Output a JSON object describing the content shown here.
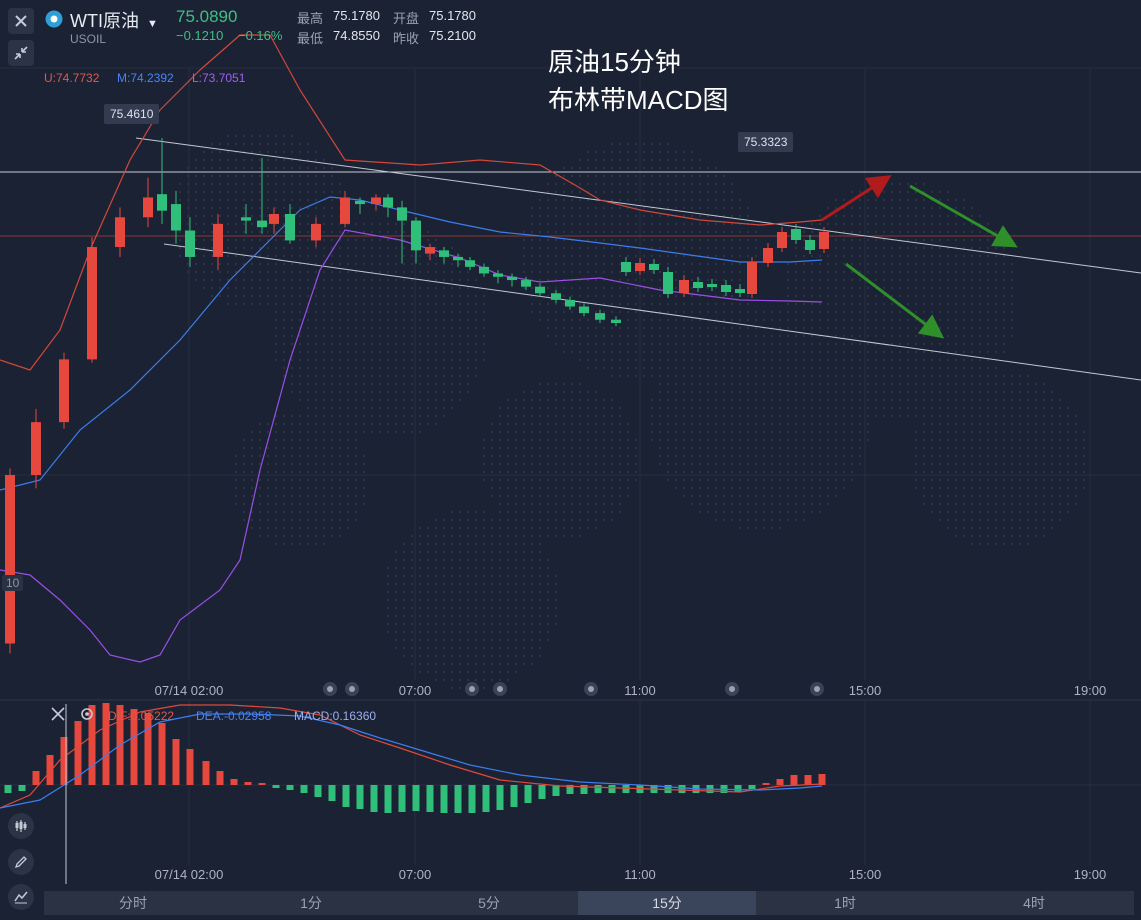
{
  "header": {
    "symbol_name": "WTI原油",
    "symbol_code": "USOIL",
    "price": "75.0890",
    "change": "−0.1210",
    "change_pct": "−0.16%",
    "stats": {
      "high_label": "最高",
      "high_value": "75.1780",
      "open_label": "开盘",
      "open_value": "75.1780",
      "low_label": "最低",
      "low_value": "74.8550",
      "prev_close_label": "昨收",
      "prev_close_value": "75.2100"
    }
  },
  "annotation": {
    "line1": "原油15分钟",
    "line2": "布林带MACD图"
  },
  "price_tags": {
    "high_tag": "75.4610",
    "right_tag": "75.3323"
  },
  "left_axis_label": "10",
  "bollinger_legend": {
    "upper": "U:74.7732",
    "middle": "M:74.2392",
    "lower": "L:73.7051"
  },
  "macd_legend": {
    "dif": "DIF:0.05222",
    "dea": "DEA:-0.02958",
    "macd": "MACD:0.16360"
  },
  "time_axis": [
    "07/14 02:00",
    "07:00",
    "11:00",
    "15:00",
    "19:00"
  ],
  "timeframes": [
    "分时",
    "1分",
    "5分",
    "15分",
    "1时",
    "4时"
  ],
  "active_timeframe": "15分",
  "colors": {
    "up": "#e6483d",
    "down": "#2fbf7a",
    "upper_band": "#d2483b",
    "middle_band": "#3d7df0",
    "lower_band": "#9a4fe6",
    "dif": "#e0493c",
    "dea": "#3d7df0",
    "accent_green": "#3fbf83"
  },
  "chart_data": [
    {
      "type": "candlestick",
      "title": "WTI原油 15分",
      "x": [
        "07/14 02:00",
        "07:00",
        "11:00",
        "15:00",
        "19:00"
      ],
      "ylim": [
        73.4,
        75.6
      ],
      "series": [
        {
          "name": "U:74.7732",
          "type": "line"
        },
        {
          "name": "M:74.2392",
          "type": "line"
        },
        {
          "name": "L:73.7051",
          "type": "line"
        }
      ],
      "candles": [
        {
          "o": 73.93,
          "c": 74.44,
          "h": 74.46,
          "l": 73.9
        },
        {
          "o": 74.44,
          "c": 74.6,
          "h": 74.64,
          "l": 74.4
        },
        {
          "o": 74.6,
          "c": 74.79,
          "h": 74.81,
          "l": 74.58
        },
        {
          "o": 74.79,
          "c": 75.13,
          "h": 75.16,
          "l": 74.78
        },
        {
          "o": 75.13,
          "c": 75.22,
          "h": 75.25,
          "l": 75.1
        },
        {
          "o": 75.22,
          "c": 75.28,
          "h": 75.34,
          "l": 75.19
        },
        {
          "o": 75.29,
          "c": 75.24,
          "h": 75.46,
          "l": 75.2
        },
        {
          "o": 75.26,
          "c": 75.18,
          "h": 75.3,
          "l": 75.14
        },
        {
          "o": 75.18,
          "c": 75.1,
          "h": 75.22,
          "l": 75.07
        },
        {
          "o": 75.1,
          "c": 75.2,
          "h": 75.23,
          "l": 75.06
        },
        {
          "o": 75.22,
          "c": 75.21,
          "h": 75.26,
          "l": 75.17
        },
        {
          "o": 75.21,
          "c": 75.19,
          "h": 75.4,
          "l": 75.17
        },
        {
          "o": 75.2,
          "c": 75.23,
          "h": 75.25,
          "l": 75.17
        },
        {
          "o": 75.23,
          "c": 75.15,
          "h": 75.26,
          "l": 75.14
        },
        {
          "o": 75.15,
          "c": 75.2,
          "h": 75.22,
          "l": 75.13
        },
        {
          "o": 75.2,
          "c": 75.28,
          "h": 75.3,
          "l": 75.19
        },
        {
          "o": 75.27,
          "c": 75.26,
          "h": 75.28,
          "l": 75.23
        },
        {
          "o": 75.26,
          "c": 75.28,
          "h": 75.29,
          "l": 75.24
        },
        {
          "o": 75.28,
          "c": 75.25,
          "h": 75.29,
          "l": 75.22
        },
        {
          "o": 75.25,
          "c": 75.21,
          "h": 75.27,
          "l": 75.08
        },
        {
          "o": 75.21,
          "c": 75.12,
          "h": 75.22,
          "l": 75.08
        },
        {
          "o": 75.11,
          "c": 75.13,
          "h": 75.14,
          "l": 75.09
        },
        {
          "o": 75.12,
          "c": 75.1,
          "h": 75.13,
          "l": 75.08
        },
        {
          "o": 75.1,
          "c": 75.09,
          "h": 75.11,
          "l": 75.07
        },
        {
          "o": 75.09,
          "c": 75.07,
          "h": 75.1,
          "l": 75.06
        },
        {
          "o": 75.07,
          "c": 75.05,
          "h": 75.08,
          "l": 75.04
        },
        {
          "o": 75.05,
          "c": 75.04,
          "h": 75.06,
          "l": 75.02
        },
        {
          "o": 75.04,
          "c": 75.03,
          "h": 75.05,
          "l": 75.01
        },
        {
          "o": 75.03,
          "c": 75.01,
          "h": 75.04,
          "l": 75.0
        },
        {
          "o": 75.01,
          "c": 74.99,
          "h": 75.02,
          "l": 74.98
        },
        {
          "o": 74.99,
          "c": 74.97,
          "h": 75.0,
          "l": 74.96
        },
        {
          "o": 74.97,
          "c": 74.95,
          "h": 74.98,
          "l": 74.94
        },
        {
          "o": 74.95,
          "c": 74.93,
          "h": 74.96,
          "l": 74.92
        },
        {
          "o": 74.93,
          "c": 74.91,
          "h": 74.94,
          "l": 74.9
        },
        {
          "o": 74.91,
          "c": 74.9,
          "h": 74.92,
          "l": 74.89
        }
      ]
    },
    {
      "type": "bar",
      "title": "MACD",
      "series": [
        {
          "name": "DIF:0.05222",
          "type": "line"
        },
        {
          "name": "DEA:-0.02958",
          "type": "line"
        },
        {
          "name": "MACD:0.16360",
          "type": "histogram"
        }
      ]
    }
  ]
}
